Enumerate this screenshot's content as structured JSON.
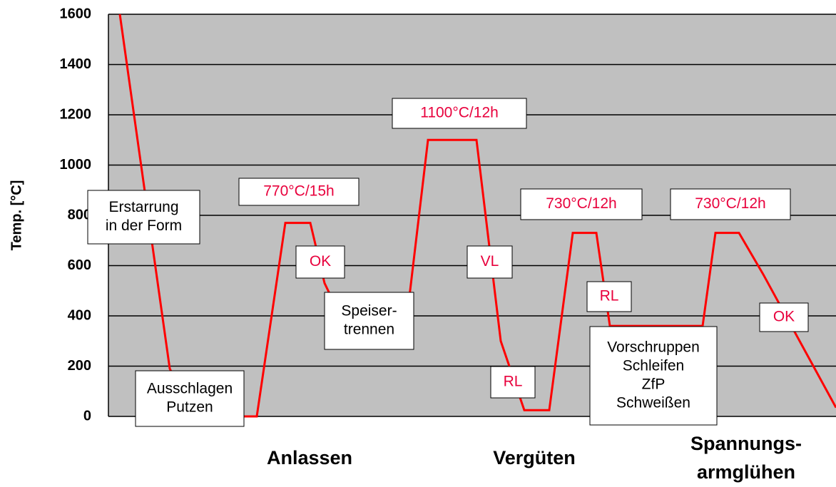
{
  "chart_data": {
    "type": "line",
    "y_label": "Temp. [°C]",
    "ylim": [
      0,
      1600
    ],
    "yticks": [
      0,
      200,
      400,
      600,
      800,
      1000,
      1200,
      1400,
      1600
    ],
    "grid": true,
    "xlim": [
      0,
      1020
    ],
    "series": [
      {
        "color": "#ff0000",
        "x": [
          16,
          86,
          120,
          208,
          248,
          283,
          303,
          325,
          420,
          448,
          516,
          550,
          583,
          618,
          651,
          684,
          703,
          833,
          851,
          884,
          918,
          1020
        ],
        "values": [
          1600,
          190,
          0,
          0,
          770,
          770,
          530,
          400,
          430,
          1100,
          1100,
          300,
          25,
          25,
          730,
          730,
          360,
          360,
          730,
          730,
          565,
          35
        ]
      }
    ],
    "annotations": [
      {
        "lines": [
          "Erstarrung",
          "in der Form"
        ],
        "color": "#000000"
      },
      {
        "lines": [
          "770°C/15h"
        ],
        "color": "#e8003c"
      },
      {
        "lines": [
          "OK"
        ],
        "color": "#e8003c"
      },
      {
        "lines": [
          "Speiser-",
          "trennen"
        ],
        "color": "#000000"
      },
      {
        "lines": [
          "1100°C/12h"
        ],
        "color": "#e8003c"
      },
      {
        "lines": [
          "VL"
        ],
        "color": "#e8003c"
      },
      {
        "lines": [
          "Ausschlagen",
          "Putzen"
        ],
        "color": "#000000"
      },
      {
        "lines": [
          "RL"
        ],
        "color": "#e8003c"
      },
      {
        "lines": [
          "730°C/12h"
        ],
        "color": "#e8003c"
      },
      {
        "lines": [
          "RL"
        ],
        "color": "#e8003c"
      },
      {
        "lines": [
          "Vorschruppen",
          "Schleifen",
          "ZfP",
          "Schweißen"
        ],
        "color": "#000000"
      },
      {
        "lines": [
          "730°C/12h"
        ],
        "color": "#e8003c"
      },
      {
        "lines": [
          "OK"
        ],
        "color": "#e8003c"
      }
    ],
    "phases": [
      {
        "lines": [
          "Anlassen"
        ]
      },
      {
        "lines": [
          "Vergüten"
        ]
      },
      {
        "lines": [
          "Spannungs-",
          "armglühen"
        ]
      }
    ]
  }
}
